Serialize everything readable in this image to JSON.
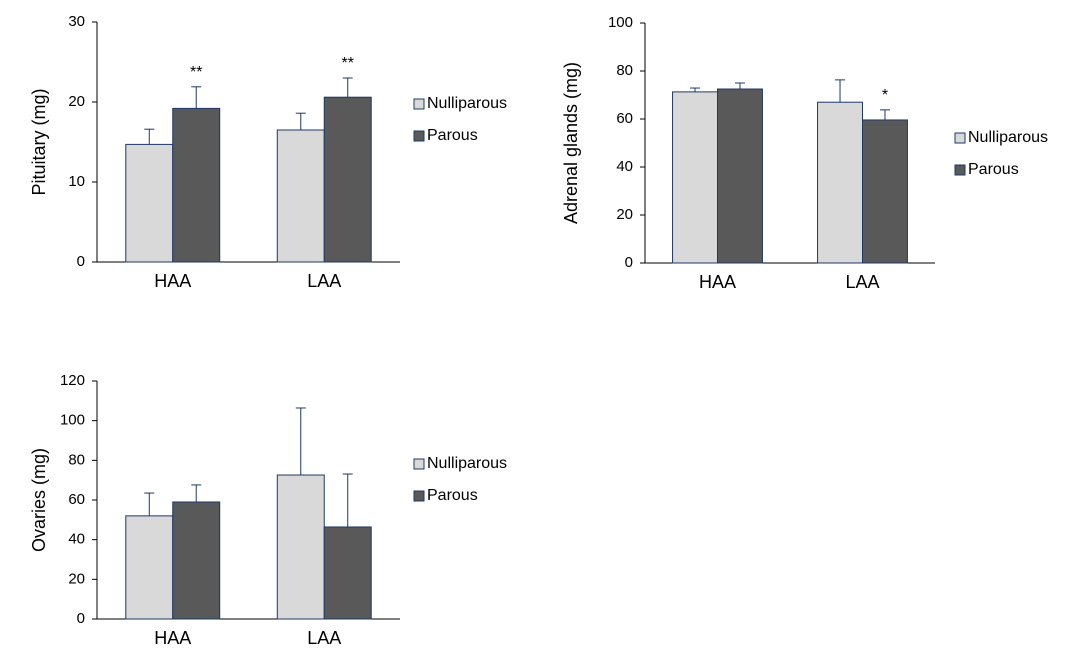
{
  "chart_data": [
    {
      "type": "bar",
      "ylabel": "Pituitary (mg)",
      "categories": [
        "HAA",
        "LAA"
      ],
      "series": [
        {
          "name": "Nulliparous",
          "color": "#d9d9d9",
          "values": [
            14.7,
            16.5
          ],
          "errors": [
            1.9,
            2.1
          ]
        },
        {
          "name": "Parous",
          "color": "#595959",
          "values": [
            19.2,
            20.6
          ],
          "errors": [
            2.7,
            2.4
          ],
          "annotations": [
            "**",
            "**"
          ]
        }
      ],
      "ylim": [
        0,
        30
      ],
      "yticks": [
        0,
        10,
        20,
        30
      ],
      "legend": "right"
    },
    {
      "type": "bar",
      "ylabel": "Adrenal glands (mg)",
      "categories": [
        "HAA",
        "LAA"
      ],
      "series": [
        {
          "name": "Nulliparous",
          "color": "#d9d9d9",
          "values": [
            71.3,
            67
          ],
          "errors": [
            1.6,
            9.3
          ]
        },
        {
          "name": "Parous",
          "color": "#595959",
          "values": [
            72.5,
            59.6
          ],
          "errors": [
            2.5,
            4.2
          ],
          "annotations": [
            null,
            "*"
          ]
        }
      ],
      "ylim": [
        0,
        100
      ],
      "yticks": [
        0,
        20,
        40,
        60,
        80,
        100
      ],
      "legend": "right"
    },
    {
      "type": "bar",
      "ylabel": "Ovaries (mg)",
      "categories": [
        "HAA",
        "LAA"
      ],
      "series": [
        {
          "name": "Nulliparous",
          "color": "#d9d9d9",
          "values": [
            52,
            72.6
          ],
          "errors": [
            11.5,
            33.8
          ]
        },
        {
          "name": "Parous",
          "color": "#595959",
          "values": [
            59,
            46.4
          ],
          "errors": [
            8.6,
            26.7
          ]
        }
      ],
      "ylim": [
        0,
        120
      ],
      "yticks": [
        0,
        20,
        40,
        60,
        80,
        100,
        120
      ],
      "legend": "right"
    }
  ]
}
